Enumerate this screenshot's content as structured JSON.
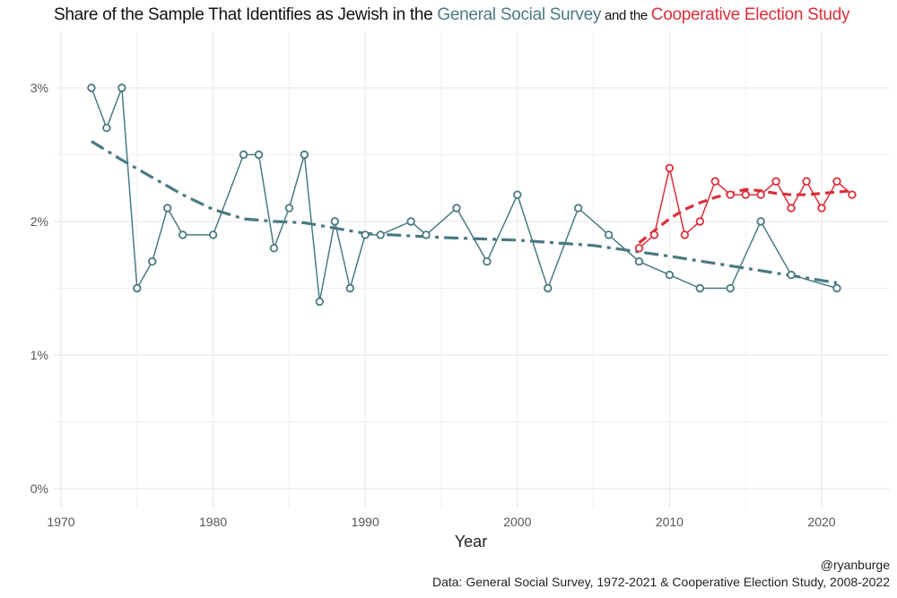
{
  "chart_data": {
    "type": "line",
    "title_parts": [
      {
        "text": "Share of the Sample That Identifies as Jewish in the ",
        "color": "#111111",
        "small": false
      },
      {
        "text": "General Social Survey",
        "color": "#4a7a82",
        "small": false
      },
      {
        "text": " and the ",
        "color": "#111111",
        "small": true
      },
      {
        "text": "Cooperative Election Study",
        "color": "#d9303a",
        "small": false
      }
    ],
    "xlabel": "Year",
    "ylabel": "",
    "xlim": [
      1968.5,
      2023.5
    ],
    "ylim": [
      -0.15,
      3.35
    ],
    "x_ticks": [
      1970,
      1980,
      1990,
      2000,
      2010,
      2020
    ],
    "y_ticks": [
      0,
      1,
      2,
      3
    ],
    "y_tick_labels": [
      "0%",
      "1%",
      "2%",
      "3%"
    ],
    "grid": true,
    "series": [
      {
        "name": "General Social Survey",
        "color": "#4a7a82",
        "x": [
          1972,
          1973,
          1974,
          1975,
          1976,
          1977,
          1978,
          1980,
          1982,
          1983,
          1984,
          1985,
          1986,
          1987,
          1988,
          1989,
          1990,
          1991,
          1993,
          1994,
          1996,
          1998,
          2000,
          2002,
          2004,
          2006,
          2008,
          2010,
          2012,
          2014,
          2016,
          2018,
          2021
        ],
        "y": [
          3.0,
          2.7,
          3.0,
          1.5,
          1.7,
          2.1,
          1.9,
          1.9,
          2.5,
          2.5,
          1.8,
          2.1,
          2.5,
          1.4,
          2.0,
          1.5,
          1.9,
          1.9,
          2.0,
          1.9,
          2.1,
          1.7,
          2.2,
          1.5,
          2.1,
          1.9,
          1.7,
          1.6,
          1.5,
          1.5,
          2.0,
          1.6,
          1.5
        ],
        "trend": {
          "x": [
            1972,
            1974,
            1976,
            1978,
            1980,
            1982,
            1984,
            1986,
            1988,
            1990,
            1995,
            2000,
            2005,
            2010,
            2015,
            2021
          ],
          "y": [
            2.6,
            2.46,
            2.33,
            2.2,
            2.09,
            2.02,
            2.0,
            1.99,
            1.95,
            1.91,
            1.88,
            1.86,
            1.82,
            1.74,
            1.65,
            1.54
          ]
        }
      },
      {
        "name": "Cooperative Election Study",
        "color": "#d9303a",
        "x": [
          2008,
          2009,
          2010,
          2011,
          2012,
          2013,
          2014,
          2015,
          2016,
          2017,
          2018,
          2019,
          2020,
          2021,
          2022
        ],
        "y": [
          1.8,
          1.9,
          2.4,
          1.9,
          2.0,
          2.3,
          2.2,
          2.2,
          2.2,
          2.3,
          2.1,
          2.3,
          2.1,
          2.3,
          2.2
        ],
        "trend": {
          "x": [
            2008,
            2009,
            2010,
            2011,
            2012,
            2013,
            2014,
            2015,
            2016,
            2017,
            2018,
            2019,
            2020,
            2021,
            2022
          ],
          "y": [
            1.84,
            1.93,
            2.02,
            2.09,
            2.14,
            2.18,
            2.21,
            2.24,
            2.23,
            2.21,
            2.2,
            2.2,
            2.21,
            2.22,
            2.23
          ]
        }
      }
    ]
  },
  "caption": {
    "handle": "@ryanburge",
    "source": "Data: General Social Survey, 1972-2021 & Cooperative Election Study, 2008-2022"
  }
}
